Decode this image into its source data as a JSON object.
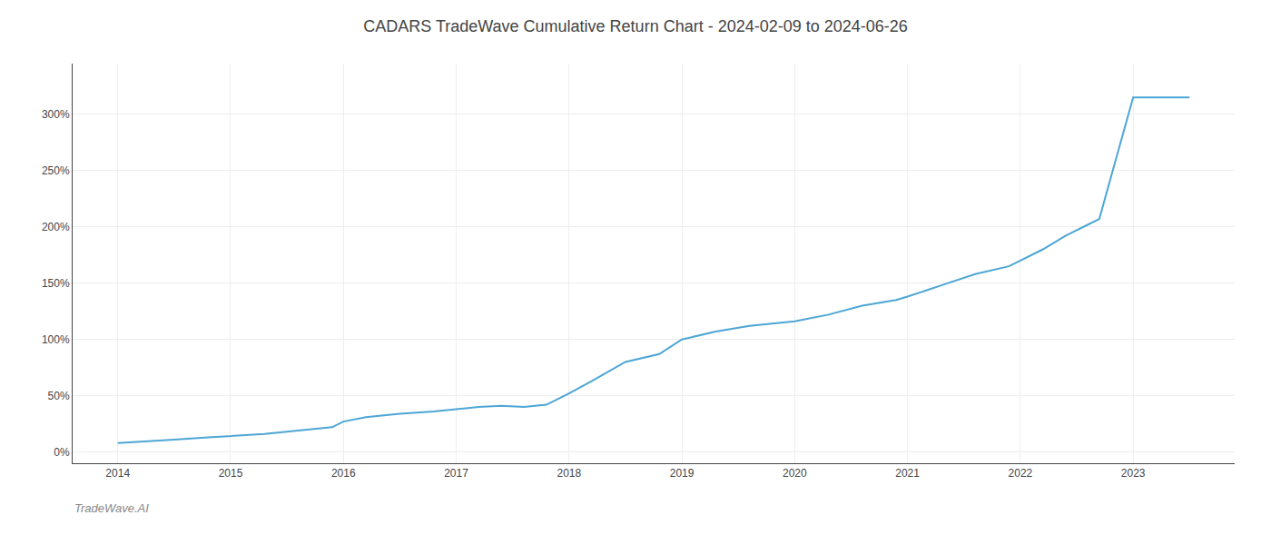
{
  "chart_data": {
    "type": "line",
    "title": "CADARS TradeWave Cumulative Return Chart - 2024-02-09 to 2024-06-26",
    "annotations": [
      "TradeWave.AI"
    ],
    "color": "#4da6d4",
    "x": [
      2014.0,
      2014.2,
      2014.5,
      2014.8,
      2015.0,
      2015.3,
      2015.6,
      2015.9,
      2016.0,
      2016.2,
      2016.5,
      2016.8,
      2017.0,
      2017.2,
      2017.4,
      2017.6,
      2017.8,
      2018.0,
      2018.2,
      2018.5,
      2018.8,
      2019.0,
      2019.3,
      2019.6,
      2019.9,
      2020.0,
      2020.3,
      2020.6,
      2020.9,
      2021.0,
      2021.3,
      2021.6,
      2021.9,
      2022.0,
      2022.2,
      2022.4,
      2022.55,
      2022.6,
      2022.7,
      2023.0,
      2023.5
    ],
    "values": [
      8,
      9,
      11,
      13,
      14,
      16,
      19,
      22,
      27,
      31,
      34,
      36,
      38,
      40,
      41,
      40,
      42,
      52,
      63,
      80,
      87,
      100,
      107,
      112,
      115,
      116,
      122,
      130,
      135,
      138,
      148,
      158,
      165,
      170,
      180,
      192,
      200,
      202,
      207,
      315,
      315
    ],
    "xlim": [
      2013.6,
      2023.9
    ],
    "ylim": [
      -10,
      345
    ],
    "xticks": [
      2014,
      2015,
      2016,
      2017,
      2018,
      2019,
      2020,
      2021,
      2022,
      2023
    ],
    "yticks": [
      {
        "value": 0,
        "label": "0%"
      },
      {
        "value": 50,
        "label": "50%"
      },
      {
        "value": 100,
        "label": "100%"
      },
      {
        "value": 150,
        "label": "150%"
      },
      {
        "value": 200,
        "label": "200%"
      },
      {
        "value": 250,
        "label": "250%"
      },
      {
        "value": 300,
        "label": "300%"
      }
    ],
    "grid": true
  }
}
